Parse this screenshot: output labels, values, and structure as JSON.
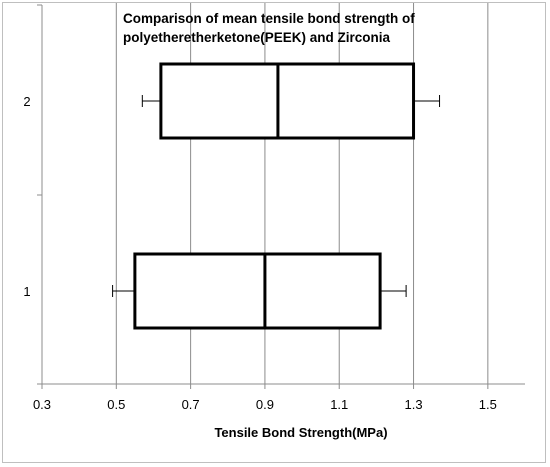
{
  "chart_data": {
    "type": "boxplot",
    "orientation": "horizontal",
    "title_lines": [
      "Comparison of mean tensile bond strength of",
      "polyetheretherketone(PEEK) and Zirconia"
    ],
    "xlabel": "Tensile Bond Strength(MPa)",
    "ylabel": "",
    "xlim": [
      0.3,
      1.6
    ],
    "x_ticks": [
      0.3,
      0.5,
      0.7,
      0.9,
      1.1,
      1.3,
      1.5
    ],
    "x_tick_labels": [
      "0.3",
      "0.5",
      "0.7",
      "0.9",
      "1.1",
      "1.3",
      "1.5"
    ],
    "grid": "vertical",
    "categories": [
      "1",
      "2"
    ],
    "boxes": [
      {
        "category": "1",
        "whisker_low": 0.49,
        "q1": 0.55,
        "median": 0.9,
        "q3": 1.21,
        "whisker_high": 1.28
      },
      {
        "category": "2",
        "whisker_low": 0.57,
        "q1": 0.62,
        "median": 0.935,
        "q3": 1.3,
        "whisker_high": 1.37
      }
    ],
    "colors": {
      "box_stroke": "#000000",
      "grid": "#8c8c8c",
      "axis": "#8c8c8c"
    }
  }
}
